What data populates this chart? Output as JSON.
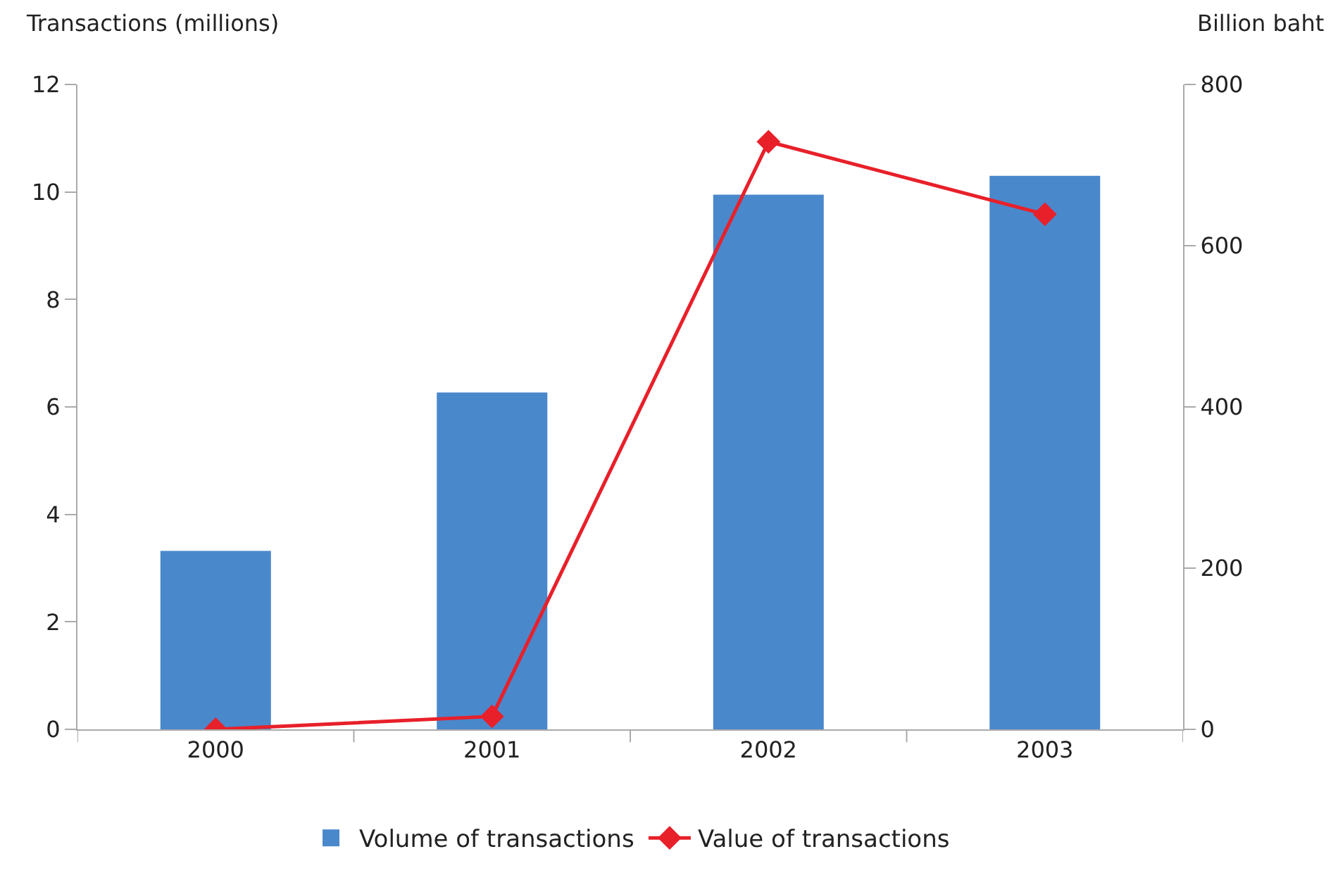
{
  "chart_data": {
    "type": "bar",
    "categories": [
      "2000",
      "2001",
      "2002",
      "2003"
    ],
    "ylabel": "Transactions (millions)",
    "y2label": "Billion baht",
    "series": [
      {
        "name": "Volume of transactions",
        "color": "#4a88cc",
        "values": [
          3.32,
          6.27,
          9.95,
          10.3
        ]
      },
      {
        "name": "Value of transactions",
        "type": "line",
        "axis": "y2",
        "color": "#e8202a",
        "marker": "diamond",
        "values": [
          0,
          16,
          729,
          639
        ]
      }
    ],
    "ylim": [
      0,
      12
    ],
    "yticks": [
      0,
      2,
      4,
      6,
      8,
      10,
      12
    ],
    "y2lim": [
      0,
      800
    ],
    "y2ticks": [
      0,
      200,
      400,
      600,
      800
    ],
    "legend": "bottom"
  }
}
